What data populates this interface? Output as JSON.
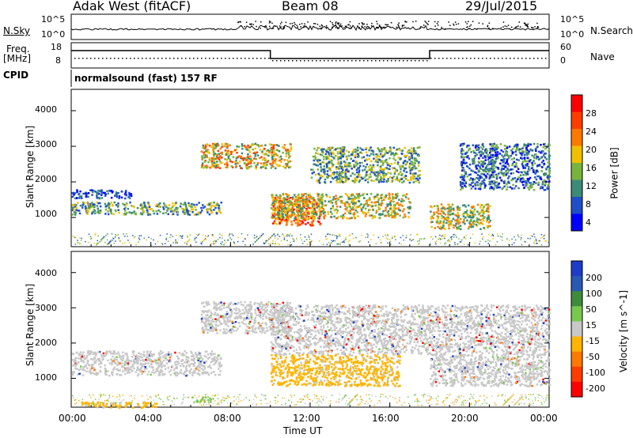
{
  "header": {
    "station": "Adak West (fitACF)",
    "beam": "Beam 08",
    "date": "29/Jul/2015"
  },
  "noise_panel": {
    "left_label": "N.Sky",
    "right_label": "N.Search",
    "left_ticks": [
      "10^5",
      "10^0"
    ],
    "right_ticks": [
      "10^5",
      "10^0"
    ]
  },
  "freq_panel": {
    "left_label_1": "Freq.",
    "left_label_2": "[MHz]",
    "left_ticks": [
      "18",
      "8"
    ],
    "right_label": "Nave",
    "right_ticks": [
      "60",
      "0"
    ]
  },
  "cpid": {
    "label": "CPID",
    "mode": "normalsound (fast) 157 RF"
  },
  "x_axis": {
    "label": "Time UT",
    "ticks": [
      "00:00",
      "04:00",
      "08:00",
      "12:00",
      "16:00",
      "20:00",
      "00:00"
    ]
  },
  "chart_data": [
    {
      "type": "heatmap",
      "panel": "power",
      "ylabel": "Slant Range [km]",
      "yticks": [
        1000,
        2000,
        3000,
        4000
      ],
      "ylim": [
        180,
        4600
      ],
      "xlim_hours": [
        0,
        24
      ],
      "colorbar_label": "Power [dB]",
      "colorbar_ticks": [
        "4",
        "8",
        "12",
        "16",
        "20",
        "24",
        "28"
      ],
      "colorbar_colors": [
        "#0000ff",
        "#1e4fc8",
        "#3c8a78",
        "#78b43c",
        "#f0c000",
        "#ff7800",
        "#ff3c00",
        "#ff0000"
      ],
      "echo_regions": [
        {
          "t_start": 0.0,
          "t_end": 3.0,
          "r_start": 1550,
          "r_end": 1800,
          "dominant": "4-8"
        },
        {
          "t_start": 0.0,
          "t_end": 7.5,
          "r_start": 1100,
          "r_end": 1450,
          "dominant": "8-12"
        },
        {
          "t_start": 6.5,
          "t_end": 11.0,
          "r_start": 2400,
          "r_end": 3100,
          "dominant": "12-24"
        },
        {
          "t_start": 10.0,
          "t_end": 12.5,
          "r_start": 800,
          "r_end": 1600,
          "dominant": "20-28"
        },
        {
          "t_start": 10.0,
          "t_end": 17.0,
          "r_start": 1000,
          "r_end": 1700,
          "dominant": "12-20"
        },
        {
          "t_start": 12.0,
          "t_end": 17.5,
          "r_start": 2000,
          "r_end": 3000,
          "dominant": "8-12"
        },
        {
          "t_start": 18.0,
          "t_end": 21.0,
          "r_start": 700,
          "r_end": 1400,
          "dominant": "12-20"
        },
        {
          "t_start": 19.5,
          "t_end": 24.0,
          "r_start": 1800,
          "r_end": 3100,
          "dominant": "4-12"
        }
      ]
    },
    {
      "type": "heatmap",
      "panel": "velocity",
      "ylabel": "Slant Range [km]",
      "yticks": [
        1000,
        2000,
        3000,
        4000
      ],
      "ylim": [
        180,
        4600
      ],
      "xlim_hours": [
        0,
        24
      ],
      "colorbar_label": "Velocity [m s^-1]",
      "colorbar_ticks": [
        "200",
        "100",
        "50",
        "15",
        "-15",
        "-50",
        "-100",
        "-200"
      ],
      "colorbar_colors": [
        "#1e3cc8",
        "#285ab4",
        "#3c8c3c",
        "#78c850",
        "#c8c8c8",
        "#ffb400",
        "#ff7800",
        "#ff3c00",
        "#ff0000"
      ],
      "echo_regions": [
        {
          "t_start": 0.0,
          "t_end": 7.5,
          "r_start": 1100,
          "r_end": 1800,
          "dominant": "-15..15"
        },
        {
          "t_start": 6.5,
          "t_end": 11.0,
          "r_start": 2300,
          "r_end": 3200,
          "dominant": "-15..15"
        },
        {
          "t_start": 10.0,
          "t_end": 16.5,
          "r_start": 800,
          "r_end": 1700,
          "dominant": "-50..-15"
        },
        {
          "t_start": 10.0,
          "t_end": 18.0,
          "r_start": 1700,
          "r_end": 3100,
          "dominant": "-15..15"
        },
        {
          "t_start": 18.0,
          "t_end": 24.0,
          "r_start": 800,
          "r_end": 3100,
          "dominant": "-15..15"
        },
        {
          "t_start": 0.5,
          "t_end": 4.5,
          "r_start": 180,
          "r_end": 350,
          "dominant": "-50..-15"
        },
        {
          "t_start": 6.0,
          "t_end": 7.0,
          "r_start": 350,
          "r_end": 500,
          "dominant": "15..50"
        }
      ]
    }
  ],
  "colors": {
    "text": "#000000",
    "frame": "#000000",
    "background": "#ffffff"
  }
}
